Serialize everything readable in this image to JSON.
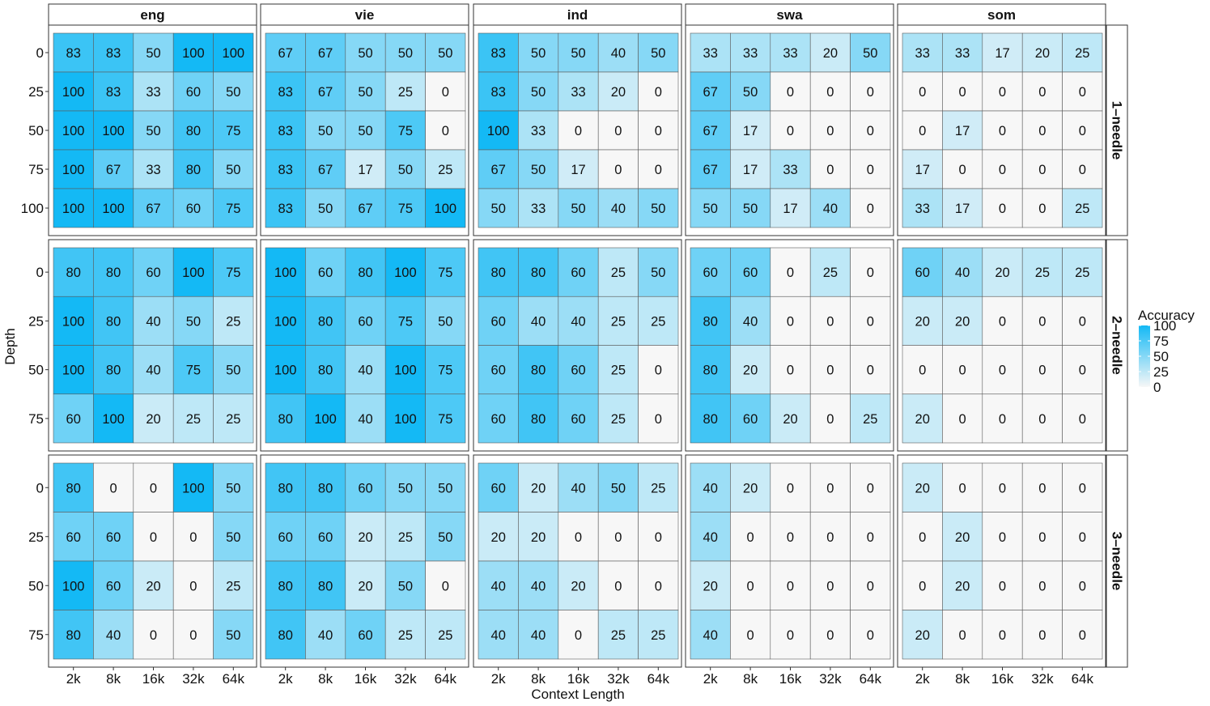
{
  "chart_data": {
    "type": "heatmap",
    "xlabel": "Context Length",
    "ylabel": "Depth",
    "x_categories": [
      "2k",
      "8k",
      "16k",
      "32k",
      "64k"
    ],
    "languages": [
      "eng",
      "vie",
      "ind",
      "swa",
      "som"
    ],
    "rows": [
      {
        "label": "1–needle",
        "depths": [
          "0",
          "25",
          "50",
          "75",
          "100"
        ],
        "panels": [
          [
            [
              83,
              83,
              50,
              100,
              100
            ],
            [
              100,
              83,
              33,
              60,
              50
            ],
            [
              100,
              100,
              50,
              80,
              75
            ],
            [
              100,
              67,
              33,
              80,
              50
            ],
            [
              100,
              100,
              67,
              60,
              75
            ]
          ],
          [
            [
              67,
              67,
              50,
              50,
              50
            ],
            [
              83,
              67,
              50,
              25,
              0
            ],
            [
              83,
              50,
              50,
              75,
              0
            ],
            [
              83,
              67,
              17,
              50,
              25
            ],
            [
              83,
              50,
              67,
              75,
              100
            ]
          ],
          [
            [
              83,
              50,
              50,
              40,
              50
            ],
            [
              83,
              50,
              33,
              20,
              0
            ],
            [
              100,
              33,
              0,
              0,
              0
            ],
            [
              67,
              50,
              17,
              0,
              0
            ],
            [
              50,
              33,
              50,
              40,
              50
            ]
          ],
          [
            [
              33,
              33,
              33,
              20,
              50
            ],
            [
              67,
              50,
              0,
              0,
              0
            ],
            [
              67,
              17,
              0,
              0,
              0
            ],
            [
              67,
              17,
              33,
              0,
              0
            ],
            [
              50,
              50,
              17,
              40,
              0
            ]
          ],
          [
            [
              33,
              33,
              17,
              20,
              25
            ],
            [
              0,
              0,
              0,
              0,
              0
            ],
            [
              0,
              17,
              0,
              0,
              0
            ],
            [
              17,
              0,
              0,
              0,
              0
            ],
            [
              33,
              17,
              0,
              0,
              25
            ]
          ]
        ]
      },
      {
        "label": "2–needle",
        "depths": [
          "0",
          "25",
          "50",
          "75"
        ],
        "panels": [
          [
            [
              80,
              80,
              60,
              100,
              75
            ],
            [
              100,
              80,
              40,
              50,
              25
            ],
            [
              100,
              80,
              40,
              75,
              50
            ],
            [
              60,
              100,
              20,
              25,
              25
            ]
          ],
          [
            [
              100,
              60,
              80,
              100,
              75
            ],
            [
              100,
              80,
              60,
              75,
              50
            ],
            [
              100,
              80,
              40,
              100,
              75
            ],
            [
              80,
              100,
              40,
              100,
              75
            ]
          ],
          [
            [
              80,
              80,
              60,
              25,
              50
            ],
            [
              60,
              40,
              40,
              25,
              25
            ],
            [
              60,
              80,
              60,
              25,
              0
            ],
            [
              60,
              80,
              60,
              25,
              0
            ]
          ],
          [
            [
              60,
              60,
              0,
              25,
              0
            ],
            [
              80,
              40,
              0,
              0,
              0
            ],
            [
              80,
              20,
              0,
              0,
              0
            ],
            [
              80,
              60,
              20,
              0,
              25
            ]
          ],
          [
            [
              60,
              40,
              20,
              25,
              25
            ],
            [
              20,
              20,
              0,
              0,
              0
            ],
            [
              0,
              0,
              0,
              0,
              0
            ],
            [
              20,
              0,
              0,
              0,
              0
            ]
          ]
        ]
      },
      {
        "label": "3–needle",
        "depths": [
          "0",
          "25",
          "50",
          "75"
        ],
        "panels": [
          [
            [
              80,
              0,
              0,
              100,
              50
            ],
            [
              60,
              60,
              0,
              0,
              50
            ],
            [
              100,
              60,
              20,
              0,
              25
            ],
            [
              80,
              40,
              0,
              0,
              50
            ]
          ],
          [
            [
              80,
              80,
              60,
              50,
              50
            ],
            [
              60,
              60,
              20,
              25,
              50
            ],
            [
              80,
              80,
              20,
              50,
              0
            ],
            [
              80,
              40,
              60,
              25,
              25
            ]
          ],
          [
            [
              60,
              20,
              40,
              50,
              25
            ],
            [
              20,
              20,
              0,
              0,
              0
            ],
            [
              40,
              40,
              20,
              0,
              0
            ],
            [
              40,
              40,
              0,
              25,
              25
            ]
          ],
          [
            [
              40,
              20,
              0,
              0,
              0
            ],
            [
              40,
              0,
              0,
              0,
              0
            ],
            [
              20,
              0,
              0,
              0,
              0
            ],
            [
              40,
              0,
              0,
              0,
              0
            ]
          ],
          [
            [
              20,
              0,
              0,
              0,
              0
            ],
            [
              0,
              20,
              0,
              0,
              0
            ],
            [
              0,
              20,
              0,
              0,
              0
            ],
            [
              20,
              0,
              0,
              0,
              0
            ]
          ]
        ]
      }
    ],
    "legend": {
      "title": "Accuracy",
      "ticks": [
        "100",
        "75",
        "50",
        "25",
        "0"
      ],
      "placement": "right",
      "color_low": "#f7f7f7",
      "color_high": "#14b9f5"
    }
  }
}
